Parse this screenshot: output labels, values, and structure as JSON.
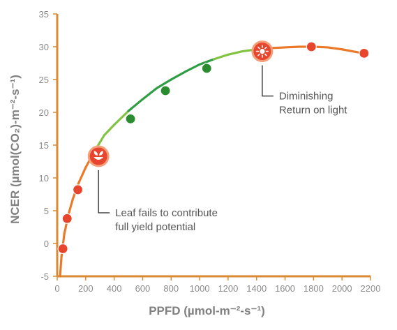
{
  "chart_data": {
    "type": "line",
    "title": "",
    "xlabel": "PPFD (µmol-m⁻²-s⁻¹)",
    "ylabel": "NCER (µmol(CO₂)-m⁻²-s⁻¹)",
    "xlim": [
      0,
      2200
    ],
    "ylim": [
      -5,
      35
    ],
    "xticks": [
      0,
      200,
      400,
      600,
      800,
      1000,
      1200,
      1400,
      1600,
      1800,
      2000,
      2200
    ],
    "yticks": [
      -5,
      0,
      5,
      10,
      15,
      20,
      25,
      30,
      35
    ],
    "grid": false,
    "legend": "none",
    "curve": {
      "x": [
        20,
        30,
        50,
        80,
        110,
        150,
        200,
        260,
        330,
        400,
        500,
        600,
        700,
        800,
        900,
        1000,
        1100,
        1200,
        1300,
        1400,
        1500,
        1600,
        1700,
        1800,
        1900,
        2000,
        2100,
        2150
      ],
      "y": [
        -5,
        -2,
        1.5,
        4.5,
        6.8,
        9.2,
        11.6,
        14.0,
        16.5,
        18.1,
        20.2,
        22.0,
        23.7,
        25.0,
        26.2,
        27.3,
        28.1,
        28.8,
        29.3,
        29.6,
        29.8,
        29.9,
        30.0,
        30.0,
        29.9,
        29.6,
        29.2,
        29.0
      ],
      "segment_colors": [
        {
          "from": -1000000000.0,
          "to": 280,
          "color": "#ea7a2a"
        },
        {
          "from": 280,
          "to": 470,
          "color": "#82c341"
        },
        {
          "from": 470,
          "to": 1150,
          "color": "#2f9e44"
        },
        {
          "from": 1150,
          "to": 1500,
          "color": "#82c341"
        },
        {
          "from": 1500,
          "to": 1000000000.0,
          "color": "#ea7a2a"
        }
      ]
    },
    "points": [
      {
        "x": 40,
        "y": -0.8,
        "color": "#e8452e"
      },
      {
        "x": 70,
        "y": 3.8,
        "color": "#e8452e"
      },
      {
        "x": 145,
        "y": 8.2,
        "color": "#e8452e"
      },
      {
        "x": 515,
        "y": 19.0,
        "color": "#2a8b2f"
      },
      {
        "x": 760,
        "y": 23.3,
        "color": "#2a8b2f"
      },
      {
        "x": 1050,
        "y": 26.7,
        "color": "#2a8b2f"
      },
      {
        "x": 1785,
        "y": 30.0,
        "color": "#e8452e"
      },
      {
        "x": 2155,
        "y": 29.0,
        "color": "#e8452e"
      }
    ],
    "markers": [
      {
        "name": "leaf-marker",
        "icon": "leaf-icon",
        "x": 290,
        "y": 13.3,
        "color": "#e8452e"
      },
      {
        "name": "sun-marker",
        "icon": "sun-icon",
        "x": 1440,
        "y": 29.3,
        "color": "#e8452e"
      }
    ],
    "annotations": [
      {
        "name": "leaf-annotation",
        "anchor_x": 290,
        "anchor_y": 13.3,
        "lines": [
          "Leaf fails to contribute",
          "full yield potential"
        ]
      },
      {
        "name": "diminishing-annotation",
        "anchor_x": 1440,
        "anchor_y": 29.3,
        "lines": [
          "Diminishing",
          "Return on light"
        ]
      }
    ],
    "colors": {
      "axis": "#d98a32",
      "tick_text": "#8a8a8a",
      "title_text": "#808080",
      "annotation_text": "#555555",
      "leader_line": "#444444",
      "marker_fill": "#e8452e",
      "marker_ring": "#f3a07a"
    }
  }
}
